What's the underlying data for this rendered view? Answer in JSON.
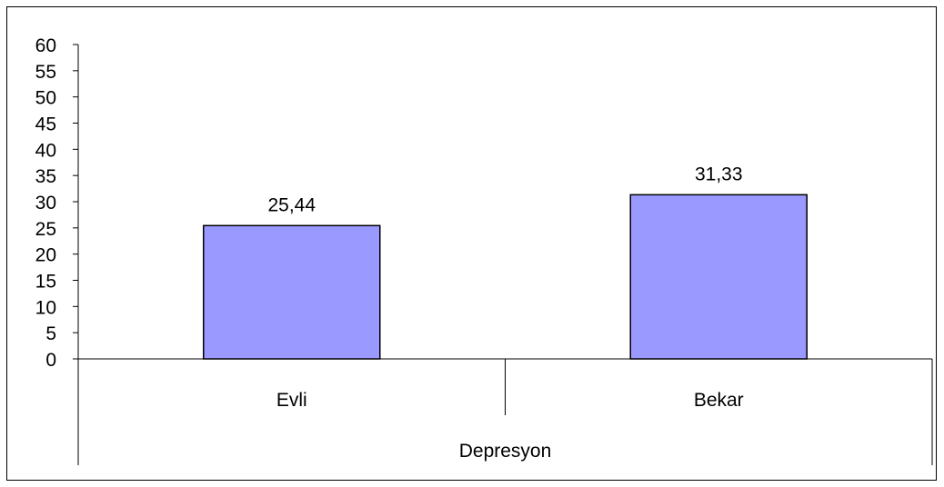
{
  "chart_data": {
    "type": "bar",
    "categories": [
      "Evli",
      "Bekar"
    ],
    "values": [
      25.44,
      31.33
    ],
    "data_labels": [
      "25,44",
      "31,33"
    ],
    "group_label": "Depresyon",
    "ylim": [
      0,
      60
    ],
    "yticks": [
      "0",
      "5",
      "10",
      "15",
      "20",
      "25",
      "30",
      "35",
      "40",
      "45",
      "50",
      "55",
      "60"
    ],
    "grid": false,
    "legend": "none",
    "bar_color": "#9999ff",
    "bar_border_color": "#000000"
  }
}
